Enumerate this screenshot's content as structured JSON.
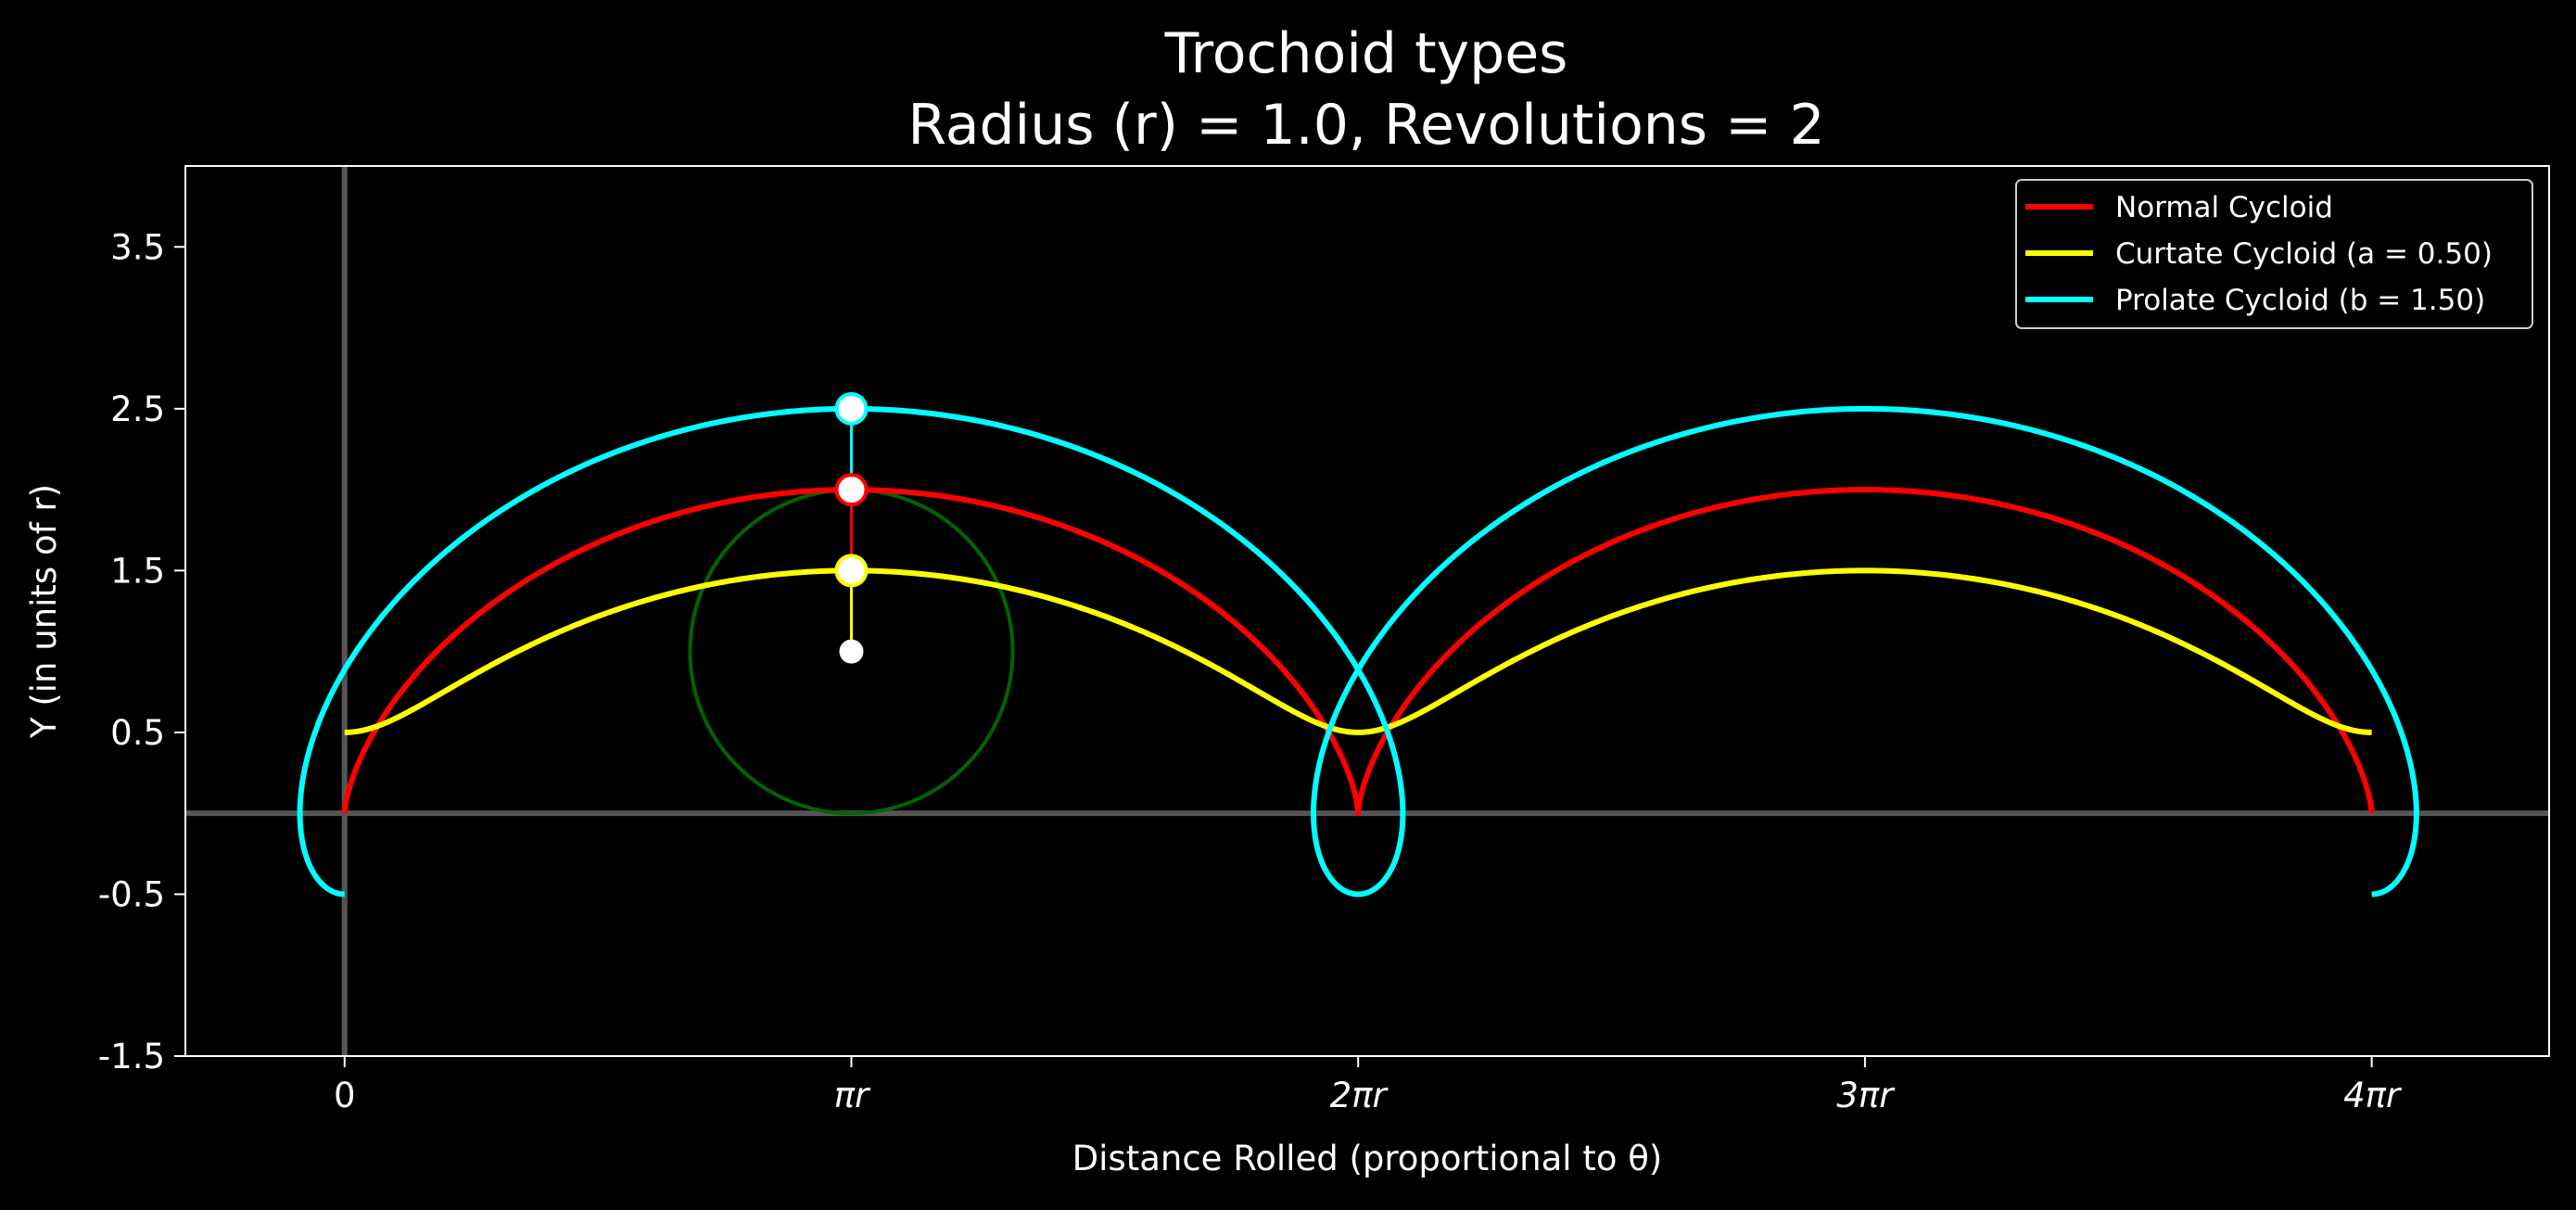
{
  "chart_data": {
    "type": "line",
    "title": "Trochoid types",
    "subtitle": "Radius (r) = 1.0, Revolutions = 2",
    "xlabel": "Distance Rolled (proportional to θ)",
    "ylabel": "Y (in units of r)",
    "xlim": [
      -0.987,
      13.666
    ],
    "ylim": [
      -1.5,
      4.0
    ],
    "x_ticks": [
      {
        "value": 0,
        "label": "0"
      },
      {
        "value": 3.14159,
        "label": "πr"
      },
      {
        "value": 6.28319,
        "label": "2πr"
      },
      {
        "value": 9.42478,
        "label": "3πr"
      },
      {
        "value": 12.56637,
        "label": "4πr"
      }
    ],
    "y_ticks": [
      {
        "value": 3.5,
        "label": "3.5"
      },
      {
        "value": 2.5,
        "label": "2.5"
      },
      {
        "value": 1.5,
        "label": "1.5"
      },
      {
        "value": 0.5,
        "label": "0.5"
      },
      {
        "value": -0.5,
        "label": "-0.5"
      },
      {
        "value": -1.5,
        "label": "-1.5"
      }
    ],
    "reference_lines": {
      "x": 0,
      "y": 0,
      "color": "#555555"
    },
    "radius": 1.0,
    "revolutions": 2,
    "theta_range": [
      0,
      12.56637
    ],
    "series": [
      {
        "name": "Normal Cycloid",
        "color": "#ff0000",
        "distance": 1.0,
        "points": [
          [
            0,
            0
          ],
          [
            0.215,
            0.293
          ],
          [
            0.571,
            1.0
          ],
          [
            1.0,
            1.5
          ],
          [
            1.571,
            1.866
          ],
          [
            3.142,
            2.0
          ],
          [
            4.712,
            1.866
          ],
          [
            5.283,
            1.5
          ],
          [
            5.712,
            1.0
          ],
          [
            6.068,
            0.293
          ],
          [
            6.283,
            0
          ],
          [
            6.498,
            0.293
          ],
          [
            6.854,
            1.0
          ],
          [
            7.283,
            1.5
          ],
          [
            7.854,
            1.866
          ],
          [
            9.425,
            2.0
          ],
          [
            10.996,
            1.866
          ],
          [
            11.566,
            1.5
          ],
          [
            11.995,
            1.0
          ],
          [
            12.351,
            0.293
          ],
          [
            12.566,
            0
          ]
        ]
      },
      {
        "name": "Curtate Cycloid (a = 0.50)",
        "color": "#ffff00",
        "distance": 0.5,
        "points": [
          [
            0,
            0.5
          ],
          [
            1.047,
            0.75
          ],
          [
            1.571,
            1.0
          ],
          [
            2.094,
            1.25
          ],
          [
            3.142,
            1.5
          ],
          [
            4.189,
            1.25
          ],
          [
            4.712,
            1.0
          ],
          [
            5.236,
            0.75
          ],
          [
            6.283,
            0.5
          ],
          [
            7.33,
            0.75
          ],
          [
            7.854,
            1.0
          ],
          [
            8.378,
            1.25
          ],
          [
            9.425,
            1.5
          ],
          [
            10.472,
            1.25
          ],
          [
            10.996,
            1.0
          ],
          [
            11.519,
            0.75
          ],
          [
            12.566,
            0.5
          ]
        ]
      },
      {
        "name": "Prolate Cycloid (b = 1.50)",
        "color": "#00ffff",
        "distance": 1.5,
        "points": [
          [
            0,
            -0.5
          ],
          [
            -0.342,
            -0.12
          ],
          [
            -0.228,
            0.44
          ],
          [
            0.071,
            1.0
          ],
          [
            0.551,
            1.5
          ],
          [
            1.571,
            2.06
          ],
          [
            3.142,
            2.5
          ],
          [
            4.712,
            2.06
          ],
          [
            5.732,
            1.5
          ],
          [
            6.212,
            1.0
          ],
          [
            6.511,
            0.44
          ],
          [
            6.625,
            -0.12
          ],
          [
            6.283,
            -0.5
          ],
          [
            5.941,
            -0.12
          ],
          [
            6.055,
            0.44
          ],
          [
            6.354,
            1.0
          ],
          [
            6.835,
            1.5
          ],
          [
            7.854,
            2.06
          ],
          [
            9.425,
            2.5
          ],
          [
            10.996,
            2.06
          ],
          [
            12.015,
            1.5
          ],
          [
            12.495,
            1.0
          ],
          [
            12.794,
            0.44
          ],
          [
            12.908,
            -0.12
          ],
          [
            12.566,
            -0.5
          ]
        ]
      }
    ],
    "rolling_circle": {
      "center": [
        3.14159,
        1.0
      ],
      "radius": 1.0,
      "color": "#006400"
    },
    "markers": [
      {
        "series": "Prolate Cycloid (b = 1.50)",
        "point": [
          3.14159,
          2.5
        ],
        "color": "#00ffff"
      },
      {
        "series": "Normal Cycloid",
        "point": [
          3.14159,
          2.0
        ],
        "color": "#ff0000"
      },
      {
        "series": "Curtate Cycloid (a = 0.50)",
        "point": [
          3.14159,
          1.5
        ],
        "color": "#ffff00"
      },
      {
        "series": "center",
        "point": [
          3.14159,
          1.0
        ],
        "color": "#ffffff"
      }
    ],
    "legend": {
      "placement": "top-right",
      "items": [
        {
          "label": "Normal Cycloid",
          "color": "#ff0000"
        },
        {
          "label": "Curtate Cycloid (a = 0.50)",
          "color": "#ffff00"
        },
        {
          "label": "Prolate Cycloid (b = 1.50)",
          "color": "#00ffff"
        }
      ]
    },
    "colors": {
      "background": "#000000",
      "axes": "#ffffff",
      "text": "#ffffff"
    }
  }
}
